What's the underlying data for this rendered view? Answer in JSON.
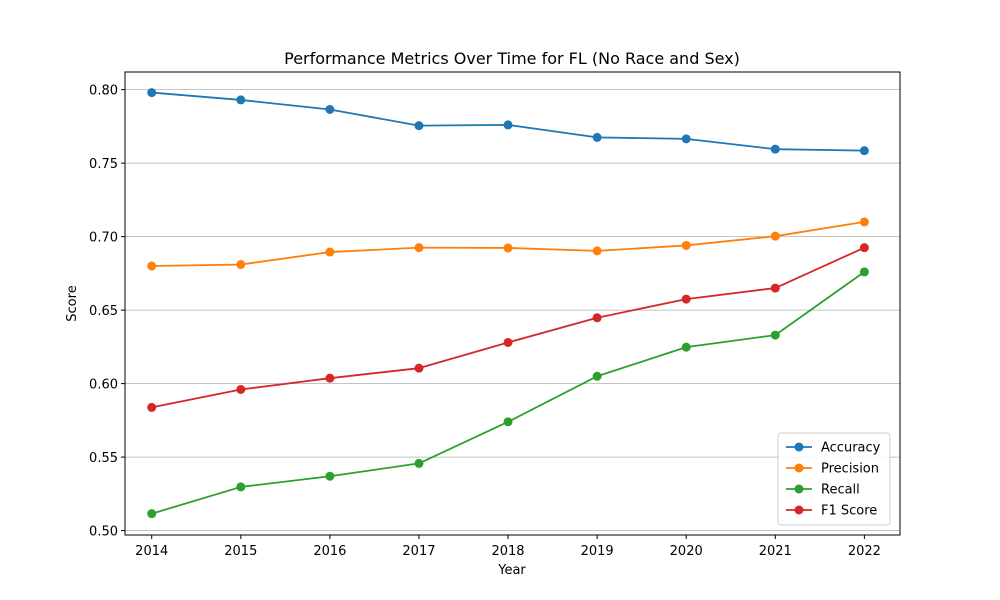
{
  "chart_data": {
    "type": "line",
    "title": "Performance Metrics Over Time for FL (No Race and Sex)",
    "xlabel": "Year",
    "ylabel": "Score",
    "x": [
      2014,
      2015,
      2016,
      2017,
      2018,
      2019,
      2020,
      2021,
      2022
    ],
    "x_ticks": [
      "2014",
      "2015",
      "2016",
      "2017",
      "2018",
      "2019",
      "2020",
      "2021",
      "2022"
    ],
    "ylim": [
      0.497,
      0.812
    ],
    "y_ticks": [
      "0.50",
      "0.55",
      "0.60",
      "0.65",
      "0.70",
      "0.75",
      "0.80"
    ],
    "grid": "horizontal",
    "legend_position": "lower right",
    "series": [
      {
        "name": "Accuracy",
        "color": "#1f77b4",
        "values": [
          0.798,
          0.793,
          0.7865,
          0.7755,
          0.776,
          0.7675,
          0.7665,
          0.7595,
          0.7585
        ]
      },
      {
        "name": "Precision",
        "color": "#ff7f0e",
        "values": [
          0.68,
          0.681,
          0.6895,
          0.6925,
          0.6923,
          0.6903,
          0.694,
          0.7003,
          0.71
        ]
      },
      {
        "name": "Recall",
        "color": "#2ca02c",
        "values": [
          0.5115,
          0.5297,
          0.537,
          0.5457,
          0.574,
          0.605,
          0.6248,
          0.633,
          0.676
        ]
      },
      {
        "name": "F1 Score",
        "color": "#d62728",
        "values": [
          0.5838,
          0.596,
          0.6037,
          0.6105,
          0.628,
          0.6448,
          0.6575,
          0.665,
          0.6925
        ]
      }
    ]
  }
}
